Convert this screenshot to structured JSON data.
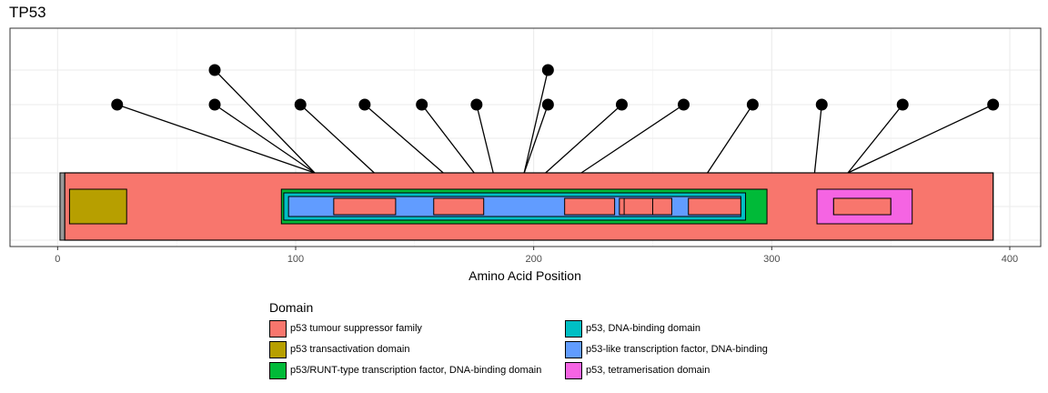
{
  "chart_data": {
    "type": "lollipop-domain",
    "title": "TP53",
    "xlabel": "Amino Acid Position",
    "xlim": [
      -20,
      413
    ],
    "x_ticks": [
      0,
      100,
      200,
      300,
      400
    ],
    "grid": true,
    "protein": {
      "start": 1,
      "end": 393
    },
    "domains": [
      {
        "name": "p53 tumour suppressor family",
        "start": 3,
        "end": 393,
        "level": 1,
        "color": "#F8766D"
      },
      {
        "name": "p53 transactivation domain",
        "start": 5,
        "end": 29,
        "level": 2,
        "color": "#B79F00"
      },
      {
        "name": "p53/RUNT-type transcription factor, DNA-binding domain",
        "start": 94,
        "end": 298,
        "level": 2,
        "color": "#00BA38"
      },
      {
        "name": "p53, DNA-binding domain",
        "start": 95,
        "end": 289,
        "level": 3,
        "color": "#00BFC4"
      },
      {
        "name": "p53-like transcription factor, DNA-binding",
        "start": 97,
        "end": 287,
        "level": 4,
        "color": "#619CFF"
      },
      {
        "name": "p53, tetramerisation domain",
        "start": 319,
        "end": 359,
        "level": 2,
        "color": "#F564E3"
      }
    ],
    "inner_motifs": [
      {
        "start": 116,
        "end": 142,
        "color": "#F8766D"
      },
      {
        "start": 158,
        "end": 179,
        "color": "#F8766D"
      },
      {
        "start": 213,
        "end": 234,
        "color": "#F8766D"
      },
      {
        "start": 236,
        "end": 258,
        "color": "#F8766D"
      },
      {
        "start": 238,
        "end": 250,
        "color": "#F8766D"
      },
      {
        "start": 265,
        "end": 287,
        "color": "#F8766D"
      },
      {
        "start": 326,
        "end": 350,
        "color": "#F564E3"
      },
      {
        "start": 326,
        "end": 350,
        "color": "#F8766D"
      }
    ],
    "mutations": [
      {
        "label_x": 25,
        "anchor": 108,
        "level": 1
      },
      {
        "label_x": 66,
        "anchor": 108,
        "level": 1
      },
      {
        "label_x": 66,
        "anchor": 108,
        "level": 2
      },
      {
        "label_x": 102,
        "anchor": 133,
        "level": 1
      },
      {
        "label_x": 129,
        "anchor": 162,
        "level": 1
      },
      {
        "label_x": 153,
        "anchor": 175,
        "level": 1
      },
      {
        "label_x": 176,
        "anchor": 183,
        "level": 1
      },
      {
        "label_x": 206,
        "anchor": 196,
        "level": 1
      },
      {
        "label_x": 206,
        "anchor": 196,
        "level": 2
      },
      {
        "label_x": 237,
        "anchor": 205,
        "level": 1
      },
      {
        "label_x": 263,
        "anchor": 220,
        "level": 1
      },
      {
        "label_x": 292,
        "anchor": 273,
        "level": 1
      },
      {
        "label_x": 321,
        "anchor": 318,
        "level": 1
      },
      {
        "label_x": 355,
        "anchor": 332,
        "level": 1
      },
      {
        "label_x": 393,
        "anchor": 332,
        "level": 1
      }
    ],
    "legend": {
      "title": "Domain",
      "position": "bottom",
      "entries": [
        {
          "label": "p53 tumour suppressor family",
          "color": "#F8766D"
        },
        {
          "label": "p53, DNA-binding domain",
          "color": "#00BFC4"
        },
        {
          "label": "p53 transactivation domain",
          "color": "#B79F00"
        },
        {
          "label": "p53-like transcription factor, DNA-binding",
          "color": "#619CFF"
        },
        {
          "label": "p53/RUNT-type transcription factor, DNA-binding domain",
          "color": "#00BA38"
        },
        {
          "label": "p53, tetramerisation domain",
          "color": "#F564E3"
        }
      ]
    }
  }
}
